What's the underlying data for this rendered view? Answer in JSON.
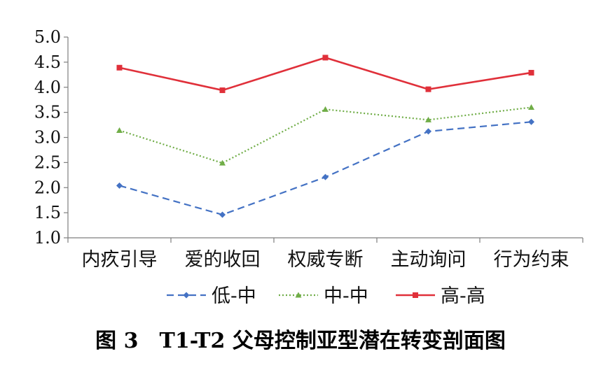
{
  "caption": "图 3　T1-T2 父母控制亚型潜在转变剖面图",
  "chart_data": {
    "type": "line",
    "categories": [
      "内疚引导",
      "爱的收回",
      "权威专断",
      "主动询问",
      "行为约束"
    ],
    "ylim": [
      1.0,
      5.0
    ],
    "yticks": [
      "1.0",
      "1.5",
      "2.0",
      "2.5",
      "3.0",
      "3.5",
      "4.0",
      "4.5",
      "5.0"
    ],
    "legend_position": "bottom",
    "grid": false,
    "series": [
      {
        "name": "低-中",
        "color": "#4472C4",
        "style": "dashed",
        "marker": "diamond",
        "values": [
          2.04,
          1.46,
          2.21,
          3.12,
          3.31
        ]
      },
      {
        "name": "中-中",
        "color": "#70AD47",
        "style": "dotted",
        "marker": "triangle",
        "values": [
          3.14,
          2.49,
          3.56,
          3.35,
          3.6
        ]
      },
      {
        "name": "高-高",
        "color": "#E0303A",
        "style": "solid",
        "marker": "square",
        "values": [
          4.39,
          3.94,
          4.59,
          3.96,
          4.29
        ]
      }
    ]
  }
}
